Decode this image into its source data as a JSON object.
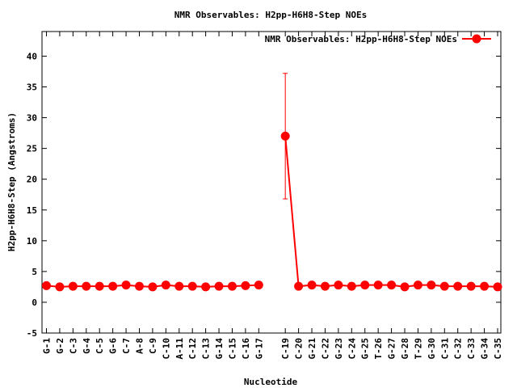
{
  "chart_data": {
    "type": "line",
    "title": "NMR Observables: H2pp-H6H8-Step NOEs",
    "xlabel": "Nucleotide",
    "ylabel": "H2pp-H6H8-Step (Angstroms)",
    "ylim": [
      -5,
      44
    ],
    "yticks": [
      -5,
      0,
      5,
      10,
      15,
      20,
      25,
      30,
      35,
      40
    ],
    "legend_position": "top-right",
    "grid": false,
    "series": [
      {
        "name": "NMR Observables: H2pp-H6H8-Step NOEs",
        "color": "#ff0000",
        "segments": [
          {
            "categories": [
              "G-1",
              "G-2",
              "C-3",
              "G-4",
              "C-5",
              "G-6",
              "C-7",
              "A-8",
              "C-9",
              "C-10",
              "A-11",
              "C-12",
              "C-13",
              "G-14",
              "C-15",
              "C-16",
              "G-17"
            ],
            "values": [
              2.7,
              2.5,
              2.6,
              2.6,
              2.6,
              2.6,
              2.8,
              2.6,
              2.5,
              2.8,
              2.6,
              2.6,
              2.5,
              2.6,
              2.6,
              2.7,
              2.8
            ],
            "errors": [
              null,
              null,
              null,
              null,
              null,
              null,
              null,
              null,
              null,
              null,
              null,
              null,
              null,
              null,
              null,
              null,
              null
            ]
          },
          {
            "categories": [
              "C-19",
              "C-20",
              "G-21",
              "C-22",
              "G-23",
              "C-24",
              "G-25",
              "T-26",
              "G-27",
              "G-28",
              "T-29",
              "G-30",
              "C-31",
              "C-32",
              "C-33",
              "G-34",
              "C-35"
            ],
            "values": [
              27.0,
              2.6,
              2.8,
              2.6,
              2.8,
              2.6,
              2.8,
              2.8,
              2.8,
              2.5,
              2.8,
              2.8,
              2.6,
              2.6,
              2.6,
              2.6,
              2.5
            ],
            "errors": [
              10.2,
              null,
              null,
              null,
              null,
              null,
              null,
              null,
              null,
              null,
              null,
              null,
              null,
              null,
              null,
              null,
              null
            ]
          }
        ]
      }
    ],
    "category_slots": [
      "G-1",
      "G-2",
      "C-3",
      "G-4",
      "C-5",
      "G-6",
      "C-7",
      "A-8",
      "C-9",
      "C-10",
      "A-11",
      "C-12",
      "C-13",
      "G-14",
      "C-15",
      "C-16",
      "G-17",
      "",
      "C-19",
      "C-20",
      "G-21",
      "C-22",
      "G-23",
      "C-24",
      "G-25",
      "T-26",
      "G-27",
      "G-28",
      "T-29",
      "G-30",
      "C-31",
      "C-32",
      "C-33",
      "G-34",
      "C-35"
    ]
  }
}
